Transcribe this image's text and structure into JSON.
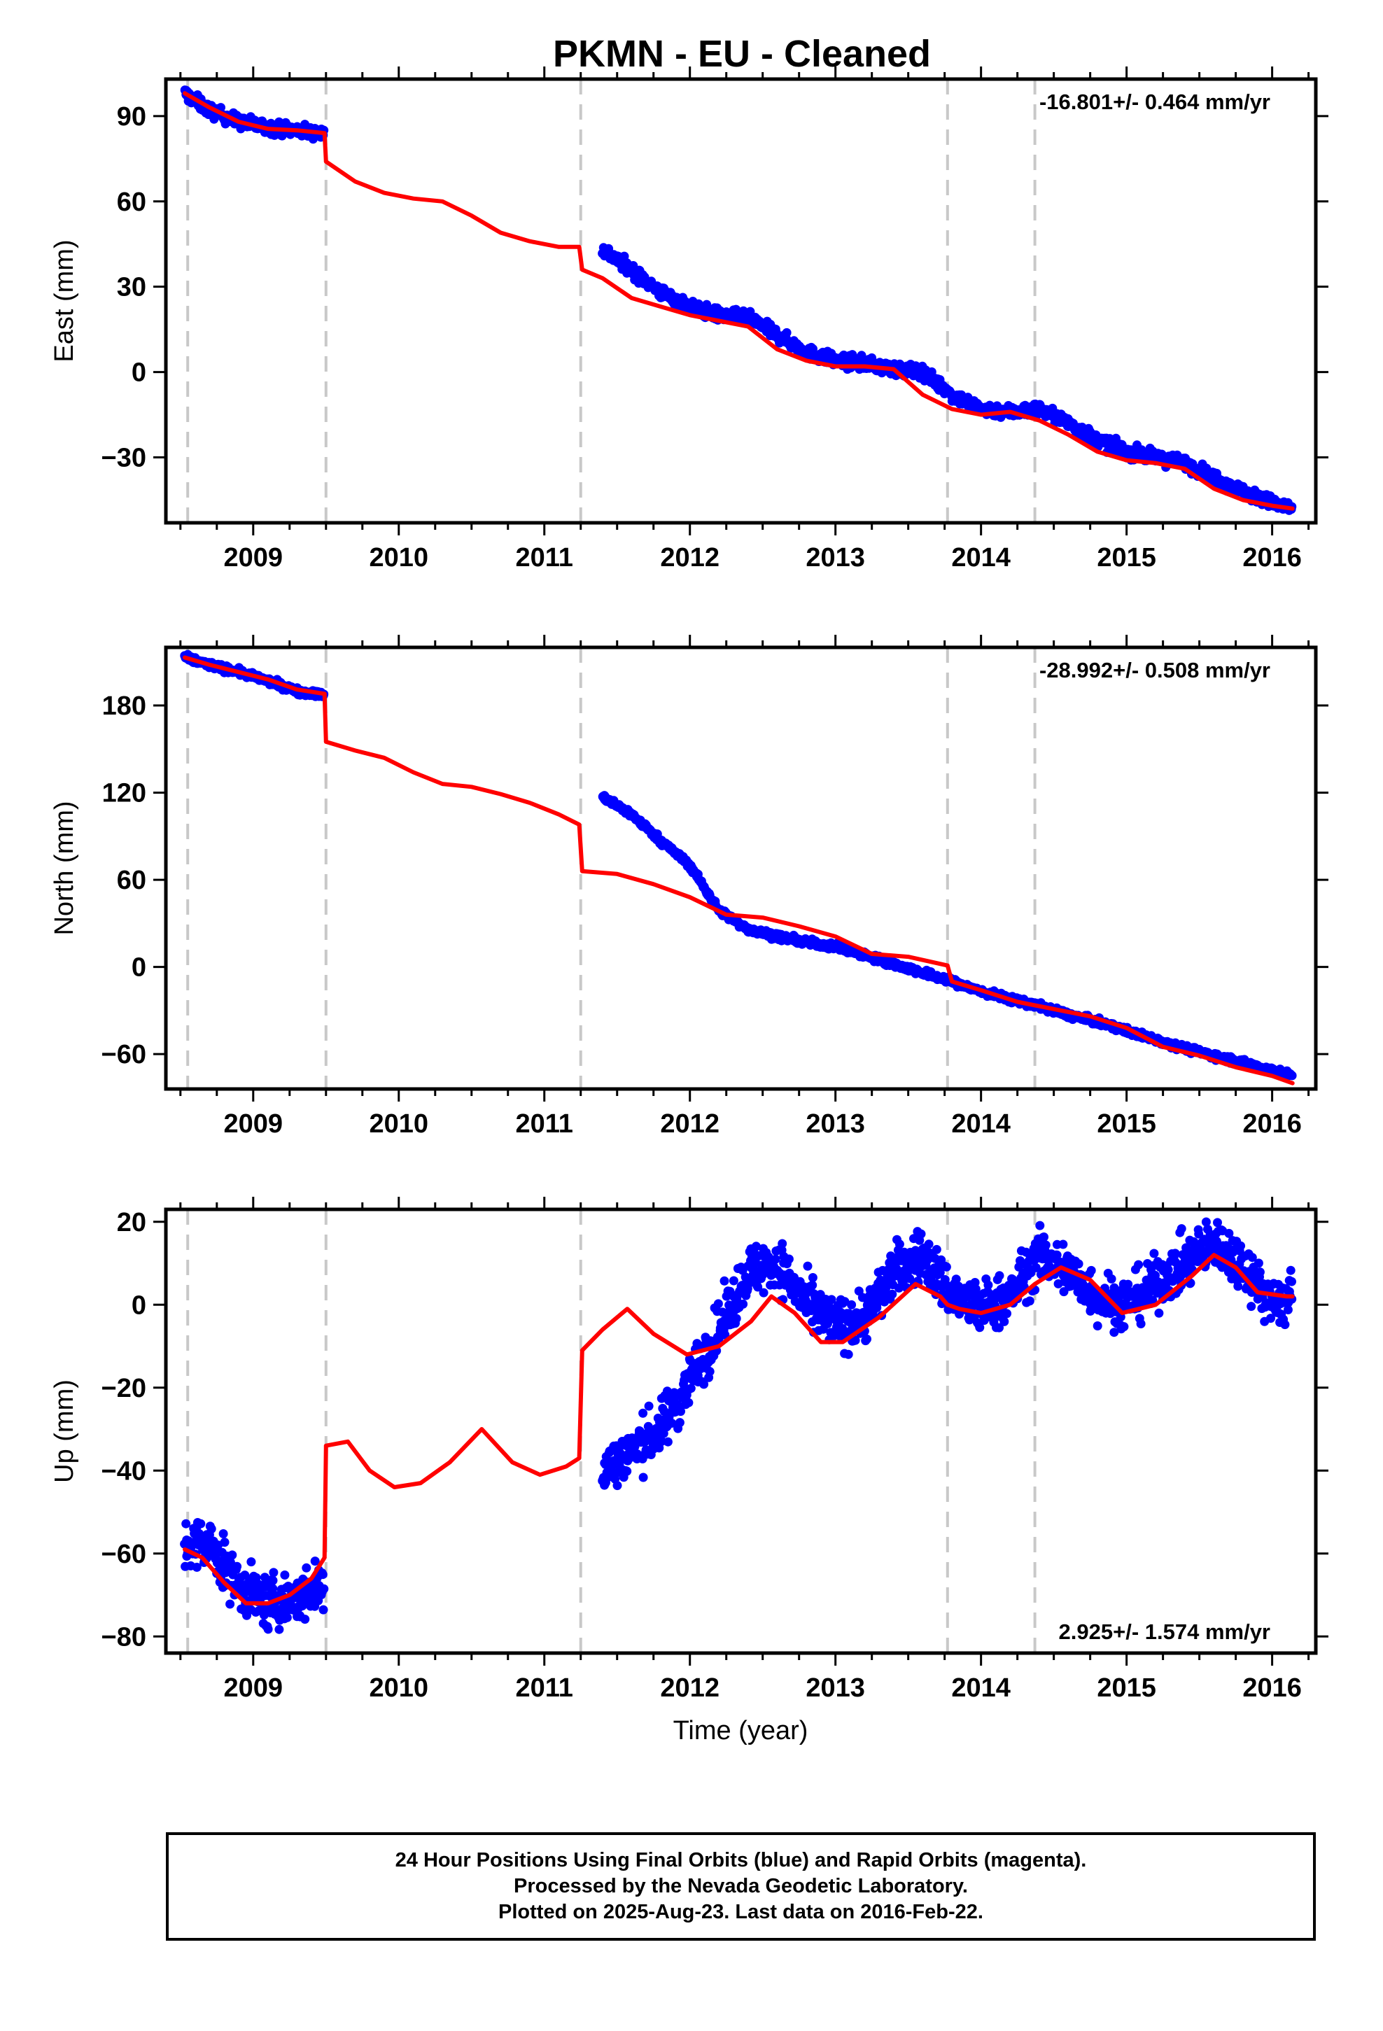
{
  "title": "PKMN  - EU - Cleaned",
  "colors": {
    "data": "#0000ff",
    "model": "#ff0000",
    "epoch_lines": "#c8c8c8"
  },
  "chart_data": [
    {
      "type": "scatter",
      "component": "East",
      "ylabel": "East (mm)",
      "xlim": [
        2008.4,
        2016.3
      ],
      "ylim": [
        -53,
        103
      ],
      "x_ticks": [
        2009,
        2010,
        2011,
        2012,
        2013,
        2014,
        2015,
        2016
      ],
      "y_ticks": [
        90,
        60,
        30,
        0,
        -30
      ],
      "rate_label": "-16.801+/- 0.464 mm/yr",
      "rate_position": "top-right",
      "epoch_lines": [
        2008.55,
        2009.5,
        2011.25,
        2013.77,
        2014.37
      ],
      "series": [
        {
          "role": "observations (blue)",
          "segments": [
            {
              "x": [
                2008.53,
                2008.7,
                2008.9,
                2009.1,
                2009.3,
                2009.49
              ],
              "y": [
                98,
                92,
                88,
                86,
                85,
                84
              ]
            },
            {
              "x": [
                2011.4,
                2011.6,
                2011.8,
                2012.0,
                2012.2,
                2012.4,
                2012.6,
                2012.8,
                2013.0,
                2013.2,
                2013.4,
                2013.6,
                2013.8,
                2014.0,
                2014.2,
                2014.4,
                2014.6,
                2014.8,
                2015.0,
                2015.2,
                2015.4,
                2015.6,
                2015.8,
                2016.0,
                2016.14
              ],
              "y": [
                43,
                36,
                28,
                23,
                20,
                19,
                13,
                7,
                4,
                3,
                1,
                0,
                -8,
                -13,
                -14,
                -13,
                -18,
                -24,
                -28,
                -30,
                -32,
                -37,
                -42,
                -46,
                -48
              ]
            }
          ]
        },
        {
          "role": "model (red)",
          "segments": [
            {
              "x": [
                2008.53,
                2008.7,
                2008.9,
                2009.1,
                2009.3,
                2009.49
              ],
              "y": [
                98,
                93,
                88,
                85.5,
                85,
                84
              ]
            },
            {
              "x": [
                2009.5,
                2009.7,
                2009.9,
                2010.1,
                2010.3,
                2010.5,
                2010.7,
                2010.9,
                2011.1,
                2011.24
              ],
              "y": [
                74,
                67,
                63,
                61,
                60,
                55,
                49,
                46,
                44,
                44
              ]
            },
            {
              "x": [
                2011.26,
                2011.4,
                2011.6,
                2011.8,
                2012.0,
                2012.2,
                2012.4,
                2012.6,
                2012.8,
                2013.0,
                2013.2,
                2013.4,
                2013.6,
                2013.8,
                2014.0,
                2014.2,
                2014.4,
                2014.6,
                2014.8,
                2015.0,
                2015.2,
                2015.4,
                2015.6,
                2015.8,
                2016.0,
                2016.14
              ],
              "y": [
                36,
                33,
                26,
                23,
                20,
                18,
                16,
                8,
                4,
                2,
                2,
                1,
                -8,
                -13,
                -15,
                -14,
                -17,
                -22,
                -28,
                -31,
                -32,
                -34,
                -41,
                -45,
                -47,
                -48
              ]
            }
          ]
        }
      ]
    },
    {
      "type": "scatter",
      "component": "North",
      "ylabel": "North (mm)",
      "xlim": [
        2008.4,
        2016.3
      ],
      "ylim": [
        -84,
        220
      ],
      "x_ticks": [
        2009,
        2010,
        2011,
        2012,
        2013,
        2014,
        2015,
        2016
      ],
      "y_ticks": [
        180,
        120,
        60,
        0,
        -60
      ],
      "rate_label": "-28.992+/- 0.508 mm/yr",
      "rate_position": "top-right",
      "epoch_lines": [
        2008.55,
        2009.5,
        2011.25,
        2013.77,
        2014.37
      ],
      "series": [
        {
          "role": "observations (blue)",
          "segments": [
            {
              "x": [
                2008.53,
                2008.7,
                2008.9,
                2009.1,
                2009.3,
                2009.49
              ],
              "y": [
                213,
                208,
                203,
                197,
                190,
                187
              ]
            },
            {
              "x": [
                2011.4,
                2011.6,
                2011.8,
                2012.0,
                2012.2,
                2012.4,
                2012.6,
                2012.8,
                2013.0,
                2013.2,
                2013.4,
                2013.6,
                2013.8,
                2014.0,
                2014.2,
                2014.4,
                2014.6,
                2014.8,
                2015.0,
                2015.2,
                2015.4,
                2015.6,
                2015.8,
                2016.0,
                2016.14
              ],
              "y": [
                117,
                105,
                87,
                70,
                39,
                26,
                21,
                17,
                14,
                8,
                2,
                -4,
                -10,
                -17,
                -22,
                -27,
                -33,
                -38,
                -44,
                -50,
                -56,
                -61,
                -66,
                -71,
                -75
              ]
            }
          ]
        },
        {
          "role": "model (red)",
          "segments": [
            {
              "x": [
                2008.53,
                2008.7,
                2008.9,
                2009.1,
                2009.3,
                2009.49
              ],
              "y": [
                213,
                208,
                203,
                198,
                191,
                188
              ]
            },
            {
              "x": [
                2009.5,
                2009.7,
                2009.9,
                2010.1,
                2010.3,
                2010.5,
                2010.7,
                2010.9,
                2011.1,
                2011.24
              ],
              "y": [
                155,
                149,
                144,
                134,
                126,
                124,
                119,
                113,
                105,
                98
              ]
            },
            {
              "x": [
                2011.26,
                2011.5,
                2011.75,
                2012.0,
                2012.25,
                2012.5,
                2012.75,
                2013.0,
                2013.25,
                2013.5,
                2013.77,
                2013.8,
                2014.0,
                2014.25,
                2014.5,
                2014.75,
                2015.0,
                2015.25,
                2015.5,
                2015.75,
                2016.0,
                2016.14
              ],
              "y": [
                66,
                64,
                57,
                48,
                36,
                34,
                28,
                21,
                9,
                7,
                1,
                -10,
                -16,
                -24,
                -29,
                -34,
                -42,
                -55,
                -61,
                -69,
                -75,
                -80
              ]
            }
          ]
        }
      ]
    },
    {
      "type": "scatter",
      "component": "Up",
      "ylabel": "Up (mm)",
      "xlabel": "Time (year)",
      "xlim": [
        2008.4,
        2016.3
      ],
      "ylim": [
        -84,
        23
      ],
      "x_ticks": [
        2009,
        2010,
        2011,
        2012,
        2013,
        2014,
        2015,
        2016
      ],
      "y_ticks": [
        20,
        0,
        -20,
        -40,
        -60,
        -80
      ],
      "rate_label": "2.925+/- 1.574 mm/yr",
      "rate_position": "bottom-right",
      "epoch_lines": [
        2008.55,
        2009.5,
        2011.25,
        2013.77,
        2014.37
      ],
      "series": [
        {
          "role": "observations (blue)",
          "segments": [
            {
              "x": [
                2008.53,
                2008.7,
                2008.9,
                2009.1,
                2009.3,
                2009.49
              ],
              "y": [
                -58,
                -58,
                -68,
                -72,
                -71,
                -67
              ]
            },
            {
              "x": [
                2011.4,
                2011.6,
                2011.8,
                2012.0,
                2012.2,
                2012.4,
                2012.6,
                2012.8,
                2013.0,
                2013.2,
                2013.4,
                2013.6,
                2013.8,
                2014.0,
                2014.2,
                2014.4,
                2014.6,
                2014.8,
                2015.0,
                2015.2,
                2015.4,
                2015.6,
                2015.8,
                2016.0,
                2016.14
              ],
              "y": [
                -40,
                -35,
                -30,
                -18,
                -6,
                8,
                10,
                0,
                -5,
                -3,
                8,
                12,
                2,
                -1,
                2,
                12,
                8,
                2,
                0,
                5,
                10,
                15,
                10,
                0,
                2
              ]
            }
          ]
        },
        {
          "role": "model (red)",
          "segments": [
            {
              "x": [
                2008.53,
                2008.65,
                2008.8,
                2008.95,
                2009.1,
                2009.25,
                2009.4,
                2009.49
              ],
              "y": [
                -59,
                -61,
                -67,
                -72,
                -72,
                -70,
                -66,
                -61
              ]
            },
            {
              "x": [
                2009.5,
                2009.65,
                2009.8,
                2009.97,
                2010.15,
                2010.35,
                2010.57,
                2010.78,
                2010.97,
                2011.15,
                2011.24
              ],
              "y": [
                -34,
                -33,
                -40,
                -44,
                -43,
                -38,
                -30,
                -38,
                -41,
                -39,
                -37
              ]
            },
            {
              "x": [
                2011.26,
                2011.4,
                2011.57,
                2011.75,
                2011.98,
                2012.2,
                2012.42,
                2012.56,
                2012.72,
                2012.9,
                2013.05,
                2013.3,
                2013.55,
                2013.72,
                2013.77,
                2013.85,
                2014.0,
                2014.2,
                2014.37,
                2014.55,
                2014.75,
                2014.97,
                2015.2,
                2015.45,
                2015.6,
                2015.75,
                2015.9,
                2016.1,
                2016.14
              ],
              "y": [
                -11,
                -6,
                -1,
                -7,
                -12,
                -10,
                -4,
                2,
                -2,
                -9,
                -9,
                -3,
                5,
                2,
                0,
                -1,
                -2,
                0,
                5,
                9,
                6,
                -2,
                0,
                7,
                12,
                9,
                3,
                2,
                2
              ]
            }
          ]
        }
      ]
    }
  ],
  "footer": {
    "line1": "24 Hour Positions Using Final Orbits (blue) and Rapid Orbits (magenta).",
    "line2": "Processed by the Nevada Geodetic Laboratory.",
    "line3": "Plotted on 2025-Aug-23. Last data on 2016-Feb-22."
  }
}
